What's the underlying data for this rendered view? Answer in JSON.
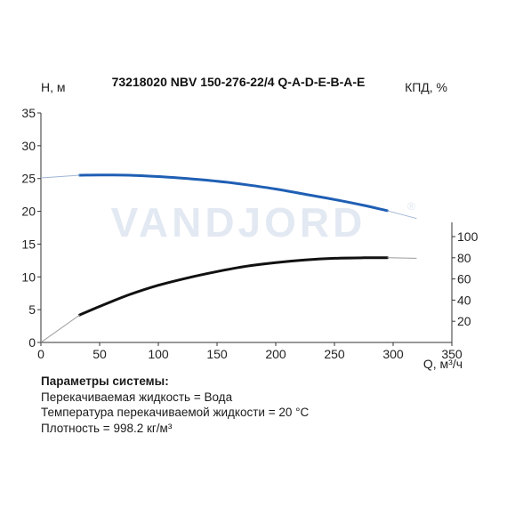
{
  "chart_data": {
    "type": "line",
    "title": "73218020 NBV 150-276-22/4 Q-A-D-E-B-A-E",
    "xlabel": "Q, м³/ч",
    "ylabel_left": "H, м",
    "ylabel_right": "КПД, %",
    "xlim": [
      0,
      350
    ],
    "ylim_left": [
      0,
      35
    ],
    "ylim_right": [
      0,
      100
    ],
    "x_ticks": [
      "0",
      "50",
      "100",
      "150",
      "200",
      "250",
      "300",
      "350"
    ],
    "y_ticks_left": [
      "0",
      "5",
      "10",
      "15",
      "20",
      "25",
      "30",
      "35"
    ],
    "y_ticks_right": [
      "20",
      "40",
      "60",
      "80",
      "100"
    ],
    "grid": false,
    "watermark": "VANDJORD",
    "series": [
      {
        "role": "head-operating",
        "color": "#1f5fb4",
        "x": [
          33,
          50,
          75,
          100,
          125,
          150,
          175,
          200,
          225,
          250,
          275,
          295
        ],
        "y": [
          25.5,
          25.55,
          25.5,
          25.3,
          25.0,
          24.6,
          24.05,
          23.4,
          22.6,
          21.8,
          20.9,
          20.1
        ]
      },
      {
        "role": "head-extension",
        "color": "#9fb5d6",
        "x": [
          0,
          33,
          295,
          320
        ],
        "y": [
          25.1,
          25.5,
          20.1,
          18.9
        ]
      },
      {
        "role": "efficiency-operating",
        "color": "#111111",
        "x": [
          33,
          50,
          75,
          100,
          125,
          150,
          175,
          200,
          225,
          250,
          275,
          295
        ],
        "y": [
          26,
          34,
          45,
          54,
          61,
          67,
          72,
          75.5,
          78,
          79.5,
          80,
          80
        ]
      },
      {
        "role": "efficiency-extension",
        "color": "#9a9a9a",
        "x": [
          0,
          33,
          295,
          320
        ],
        "y": [
          0,
          26,
          80,
          79.5
        ]
      }
    ]
  },
  "params": {
    "heading": "Параметры системы:",
    "lines": [
      "Перекачиваемая жидкость = Вода",
      "Температура перекачиваемой жидкости = 20 °C",
      "Плотность = 998.2 кг/м³"
    ]
  },
  "colors": {
    "axis": "#333333",
    "head": "#1f5fb4",
    "efficiency": "#111111",
    "watermark": "#e3e9f2"
  }
}
